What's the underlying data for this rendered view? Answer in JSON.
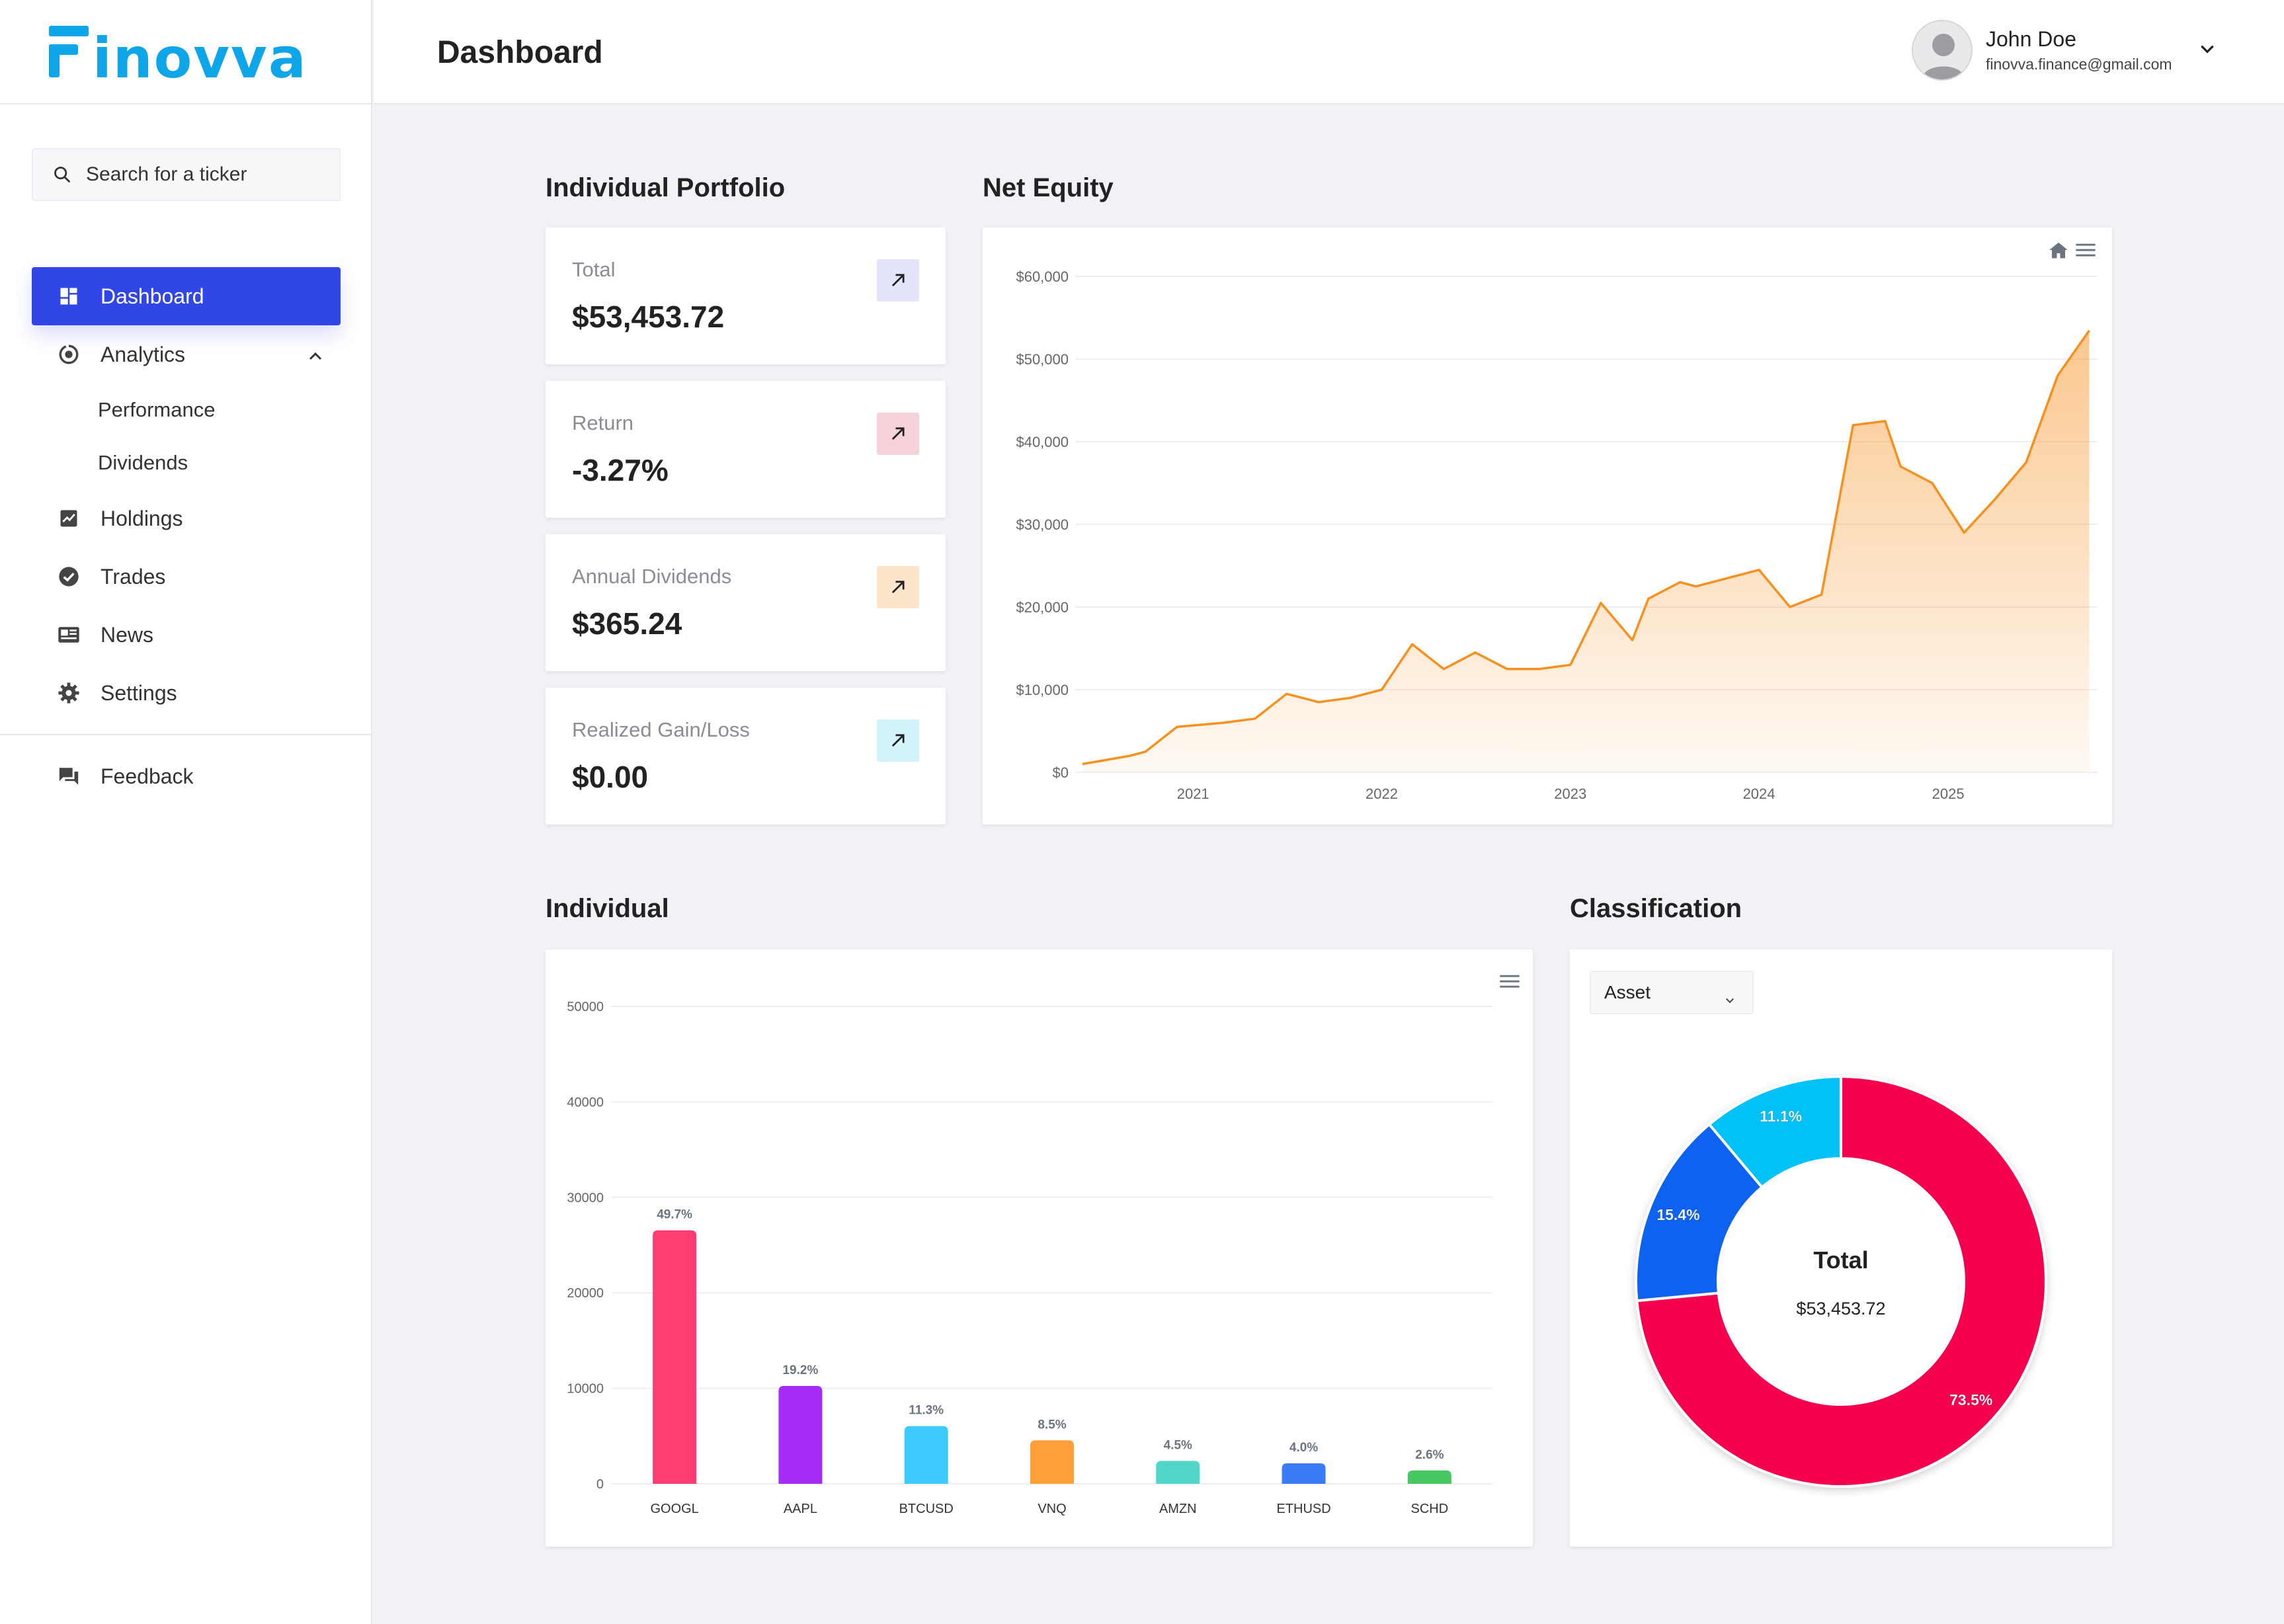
{
  "app": {
    "logo_text": "Finovva",
    "brand_color": "#0ea5e9",
    "accent": "#3146e6"
  },
  "search": {
    "placeholder": "Search for a ticker"
  },
  "sidebar": {
    "items": [
      {
        "label": "Dashboard",
        "icon": "dashboard-icon",
        "active": true
      },
      {
        "label": "Analytics",
        "icon": "analytics-icon",
        "expanded": true,
        "children": [
          {
            "label": "Performance"
          },
          {
            "label": "Dividends"
          }
        ]
      },
      {
        "label": "Holdings",
        "icon": "holdings-icon"
      },
      {
        "label": "Trades",
        "icon": "trades-icon"
      },
      {
        "label": "News",
        "icon": "news-icon"
      },
      {
        "label": "Settings",
        "icon": "gear-icon"
      }
    ],
    "feedback": {
      "label": "Feedback",
      "icon": "feedback-icon"
    }
  },
  "header": {
    "title": "Dashboard"
  },
  "user": {
    "name": "John Doe",
    "email": "finovva.finance@gmail.com"
  },
  "portfolio": {
    "title": "Individual Portfolio",
    "stats": [
      {
        "label": "Total",
        "value": "$53,453.72",
        "color": "#e3e5fb"
      },
      {
        "label": "Return",
        "value": "-3.27%",
        "color": "#f6d3d8"
      },
      {
        "label": "Annual Dividends",
        "value": "$365.24",
        "color": "#fde5cc"
      },
      {
        "label": "Realized Gain/Loss",
        "value": "$0.00",
        "color": "#d3f3fb"
      }
    ]
  },
  "net_equity": {
    "title": "Net Equity"
  },
  "individual": {
    "title": "Individual"
  },
  "classification": {
    "title": "Classification",
    "select_value": "Asset",
    "center_label": "Total",
    "center_value": "$53,453.72"
  },
  "chart_data": [
    {
      "type": "area",
      "title": "Net Equity",
      "color": "#f7901e",
      "x": [
        "2020-06",
        "2020-09",
        "2020-10",
        "2020-12",
        "2021-03",
        "2021-05",
        "2021-07",
        "2021-09",
        "2021-11",
        "2022-01",
        "2022-03",
        "2022-05",
        "2022-07",
        "2022-09",
        "2022-11",
        "2023-01",
        "2023-03",
        "2023-05",
        "2023-06",
        "2023-08",
        "2023-09",
        "2023-11",
        "2024-01",
        "2024-03",
        "2024-05",
        "2024-07",
        "2024-09",
        "2024-10",
        "2024-12",
        "2025-02",
        "2025-04",
        "2025-06",
        "2025-08",
        "2025-10"
      ],
      "values": [
        1000,
        2000,
        2500,
        5500,
        6000,
        6500,
        9500,
        8500,
        9000,
        10000,
        15500,
        12500,
        14500,
        12500,
        12500,
        13000,
        20500,
        16000,
        21000,
        23000,
        22500,
        23500,
        24500,
        20000,
        21500,
        42000,
        42500,
        37000,
        35000,
        29000,
        33000,
        37500,
        48000,
        53450
      ],
      "ylim": [
        0,
        60000
      ],
      "yticks": [
        "$0",
        "$10,000",
        "$20,000",
        "$30,000",
        "$40,000",
        "$50,000",
        "$60,000"
      ],
      "xticks": [
        "2021",
        "2022",
        "2023",
        "2024",
        "2025"
      ]
    },
    {
      "type": "bar",
      "title": "Individual",
      "categories": [
        "GOOGL",
        "AAPL",
        "BTCUSD",
        "VNQ",
        "AMZN",
        "ETHUSD",
        "SCHD"
      ],
      "values": [
        26550,
        10250,
        6050,
        4550,
        2400,
        2150,
        1400
      ],
      "labels": [
        "49.7%",
        "19.2%",
        "11.3%",
        "8.5%",
        "4.5%",
        "4.0%",
        "2.6%"
      ],
      "colors": [
        "#ff3d71",
        "#a42cf5",
        "#3ccbfc",
        "#ff9f3a",
        "#4fd6c8",
        "#3b7bf5",
        "#46c960"
      ],
      "ylim": [
        0,
        50000
      ],
      "yticks": [
        "0",
        "10000",
        "20000",
        "30000",
        "40000",
        "50000"
      ]
    },
    {
      "type": "pie",
      "title": "Classification",
      "labels": [
        "73.5%",
        "15.4%",
        "11.1%"
      ],
      "values": [
        73.5,
        15.4,
        11.1
      ],
      "colors": [
        "#f5054f",
        "#0f63f0",
        "#00c2f7"
      ]
    }
  ]
}
